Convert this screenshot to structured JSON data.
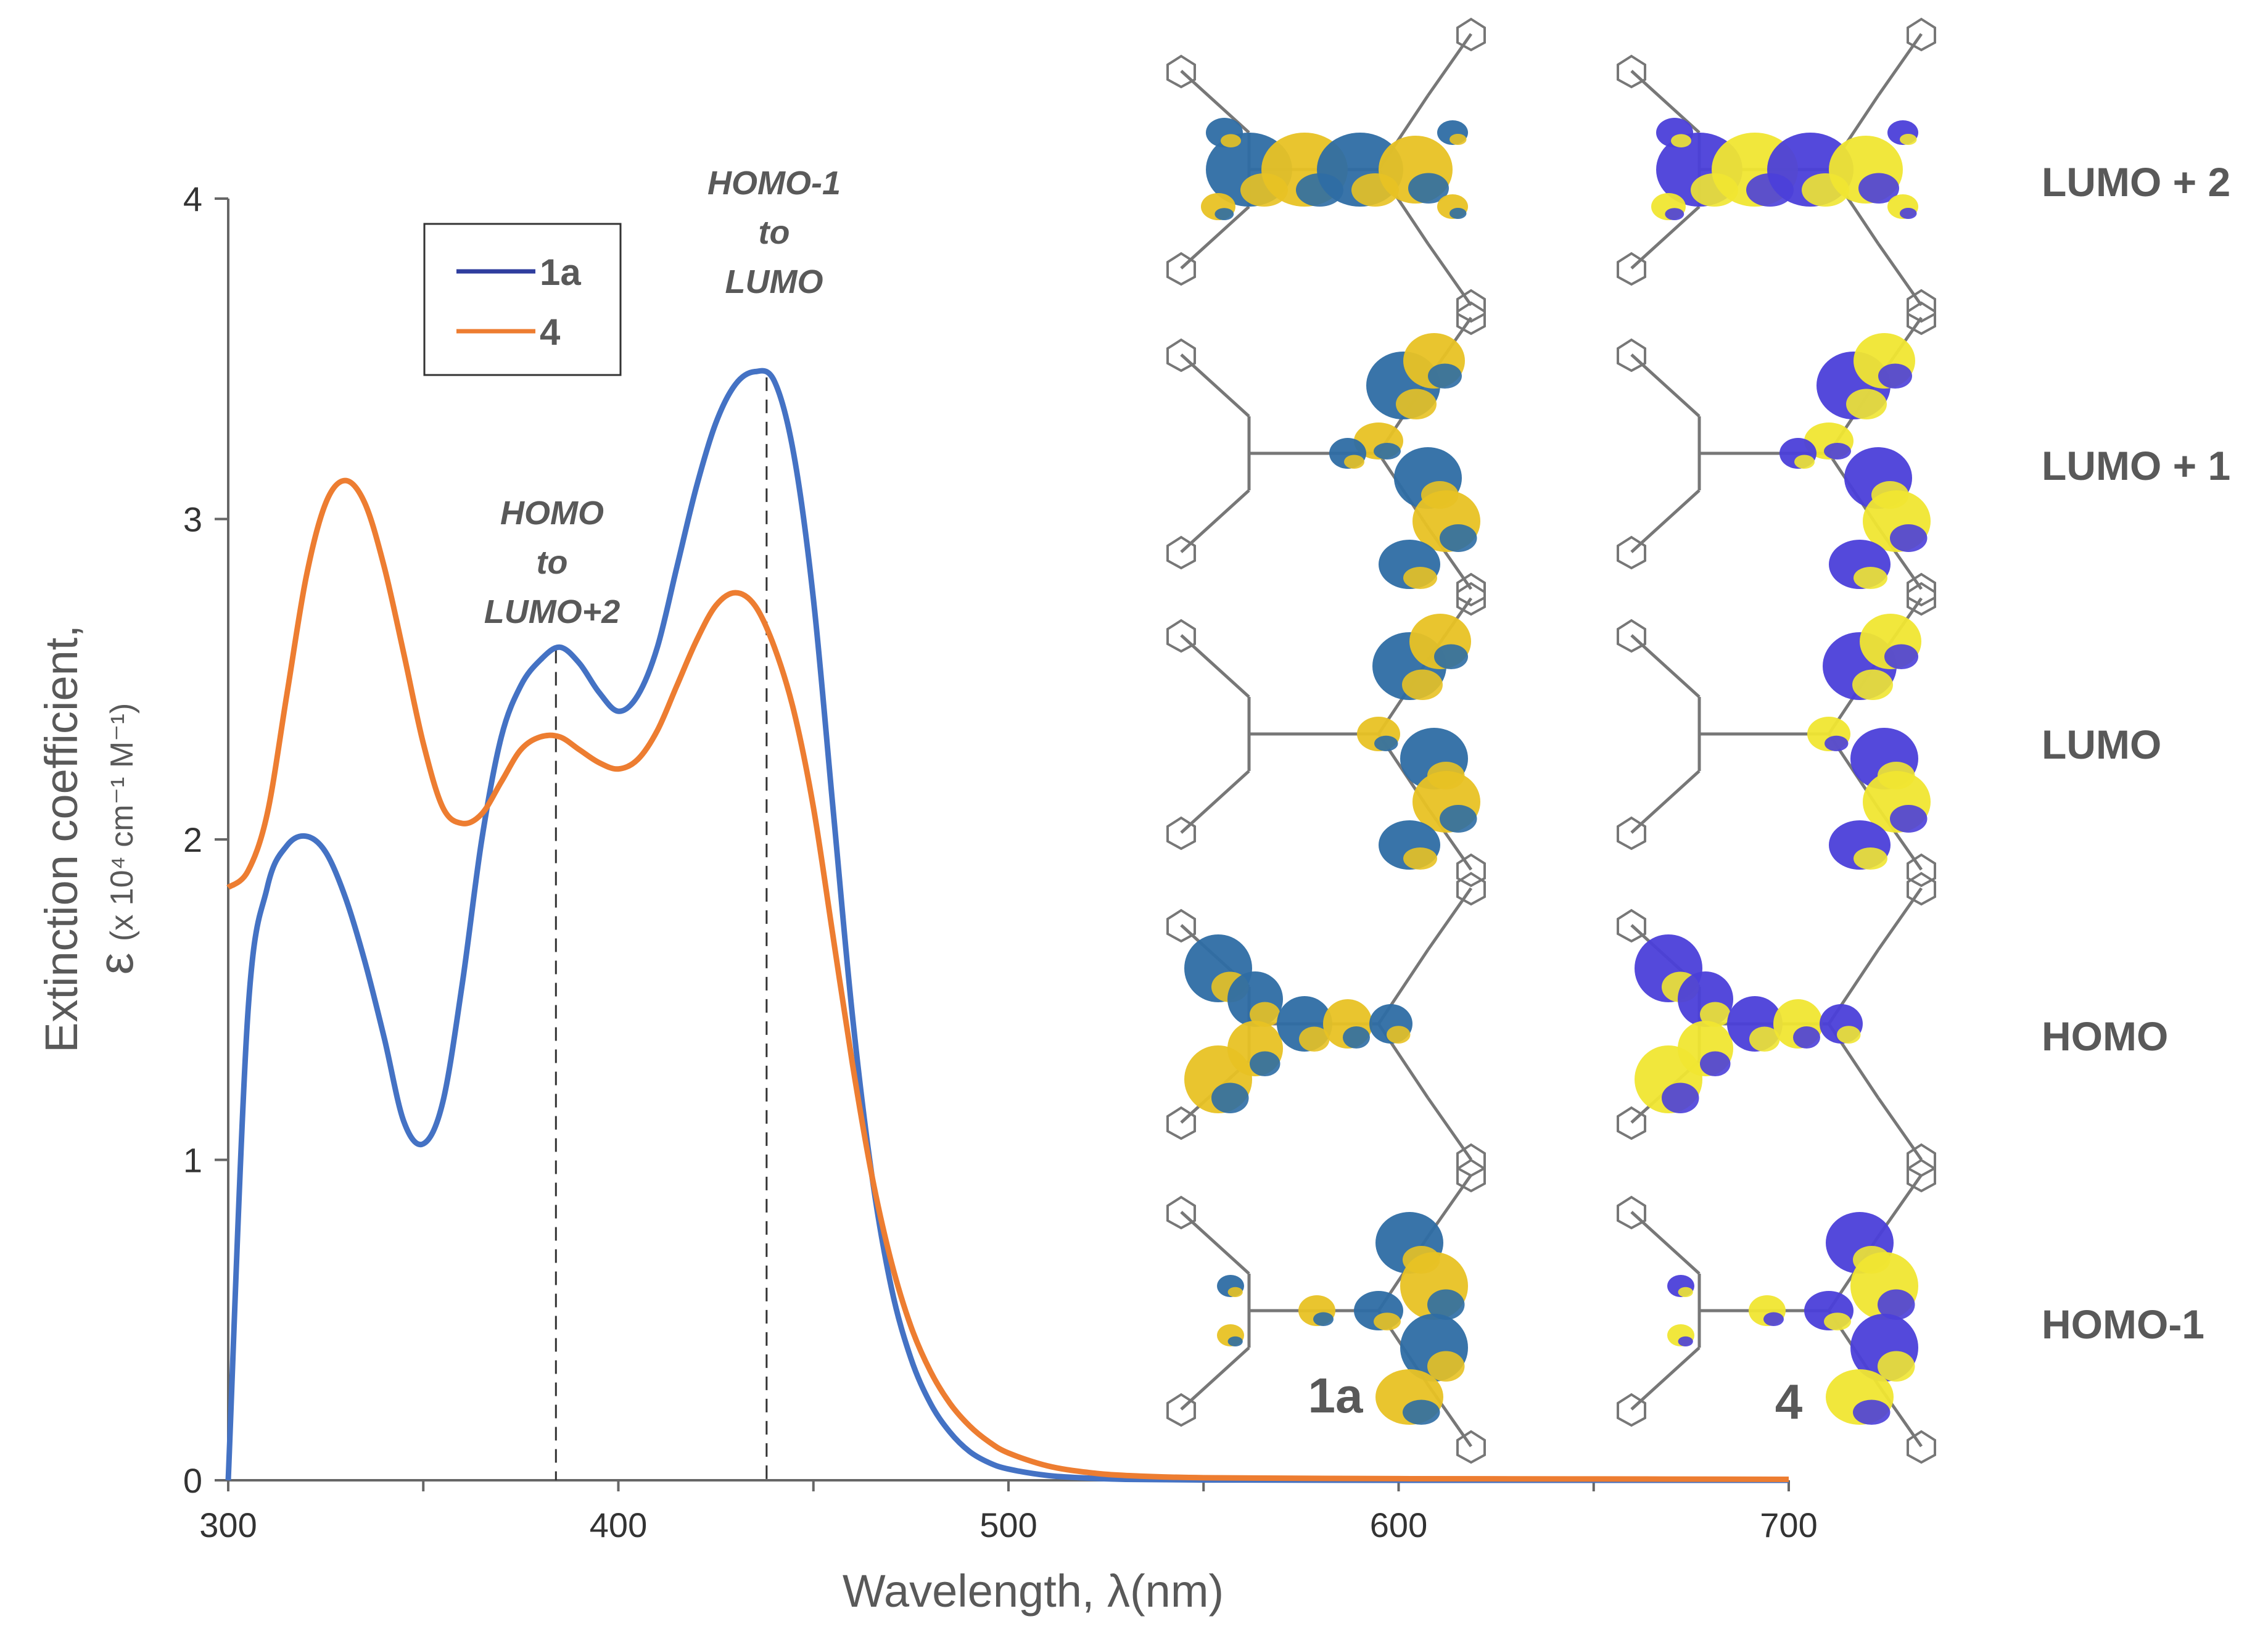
{
  "chart_data": {
    "type": "line",
    "xlabel": "Wavelength,  λ(nm)",
    "ylabel_line1": "Extinction coefficient,",
    "ylabel_symbol": "ε",
    "ylabel_units": "(x 10⁴ cm⁻¹ M⁻¹)",
    "xlim": [
      300,
      700
    ],
    "ylim": [
      0,
      4
    ],
    "xticks": [
      300,
      400,
      500,
      600,
      700
    ],
    "yticks": [
      0,
      1,
      2,
      3,
      4
    ],
    "grid": false,
    "legend_position": "top-left",
    "series": [
      {
        "name": "1a",
        "color": "#4472C4",
        "x": [
          300,
          305,
          310,
          315,
          320,
          325,
          330,
          335,
          340,
          345,
          350,
          355,
          360,
          365,
          370,
          375,
          380,
          385,
          390,
          395,
          400,
          405,
          410,
          415,
          420,
          425,
          430,
          435,
          440,
          445,
          450,
          455,
          460,
          465,
          470,
          475,
          480,
          485,
          490,
          495,
          500,
          510,
          520,
          530,
          550,
          600,
          650,
          700
        ],
        "y": [
          0,
          1.45,
          1.85,
          1.98,
          2.01,
          1.96,
          1.82,
          1.62,
          1.38,
          1.12,
          1.05,
          1.18,
          1.55,
          2.0,
          2.32,
          2.48,
          2.56,
          2.6,
          2.55,
          2.46,
          2.4,
          2.45,
          2.6,
          2.85,
          3.1,
          3.3,
          3.42,
          3.46,
          3.43,
          3.2,
          2.75,
          2.1,
          1.45,
          0.95,
          0.6,
          0.38,
          0.24,
          0.15,
          0.09,
          0.055,
          0.035,
          0.015,
          0.007,
          0.003,
          0.001,
          0,
          0,
          0
        ]
      },
      {
        "name": "4",
        "color": "#ED7D31",
        "x": [
          300,
          305,
          310,
          315,
          320,
          325,
          330,
          335,
          340,
          345,
          350,
          355,
          360,
          365,
          370,
          375,
          380,
          385,
          390,
          395,
          400,
          405,
          410,
          415,
          420,
          425,
          430,
          435,
          440,
          445,
          450,
          455,
          460,
          465,
          470,
          475,
          480,
          485,
          490,
          495,
          500,
          510,
          520,
          530,
          550,
          600,
          650,
          700
        ],
        "y": [
          1.85,
          1.9,
          2.08,
          2.45,
          2.82,
          3.05,
          3.12,
          3.05,
          2.85,
          2.58,
          2.3,
          2.1,
          2.05,
          2.08,
          2.18,
          2.28,
          2.32,
          2.32,
          2.28,
          2.24,
          2.22,
          2.25,
          2.34,
          2.48,
          2.62,
          2.73,
          2.77,
          2.73,
          2.6,
          2.4,
          2.1,
          1.7,
          1.3,
          0.95,
          0.68,
          0.48,
          0.34,
          0.24,
          0.17,
          0.12,
          0.085,
          0.045,
          0.025,
          0.015,
          0.008,
          0.005,
          0.004,
          0.003
        ]
      }
    ],
    "annotations": [
      {
        "lines": [
          "HOMO",
          "to",
          "LUMO+2"
        ],
        "x": 384
      },
      {
        "lines": [
          "HOMO-1",
          "to",
          "LUMO"
        ],
        "x": 438
      }
    ],
    "orbital_panel": {
      "column_labels": [
        "1a",
        "4"
      ],
      "row_labels": [
        "LUMO + 2",
        "LUMO + 1",
        "LUMO",
        "HOMO",
        "HOMO-1"
      ],
      "lobe_colors": {
        "1a": {
          "positive": "#2E6DA4",
          "negative": "#E8C224"
        },
        "4": {
          "positive": "#4B3FD9",
          "negative": "#F0E632"
        }
      }
    }
  }
}
